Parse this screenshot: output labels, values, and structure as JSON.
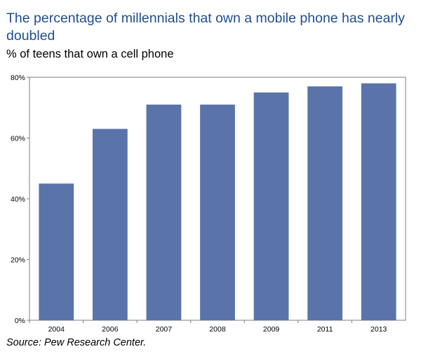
{
  "title": "The percentage of millennials that own a mobile phone has nearly doubled",
  "subtitle": "% of teens that own a cell phone",
  "source": "Source:  Pew Research Center.",
  "colors": {
    "bar": "#5a74aa",
    "frame": "#7f7f7f",
    "title": "#1f4e8f"
  },
  "chart_data": {
    "type": "bar",
    "categories": [
      "2004",
      "2006",
      "2007",
      "2008",
      "2009",
      "2011",
      "2013"
    ],
    "values": [
      45,
      63,
      71,
      71,
      75,
      77,
      78
    ],
    "ylim": [
      0,
      80
    ],
    "yticks": [
      "0%",
      "20%",
      "40%",
      "60%",
      "80%"
    ],
    "ytick_values": [
      0,
      20,
      40,
      60,
      80
    ],
    "xlabel": "",
    "ylabel": "",
    "grid": false,
    "legend": "none"
  }
}
